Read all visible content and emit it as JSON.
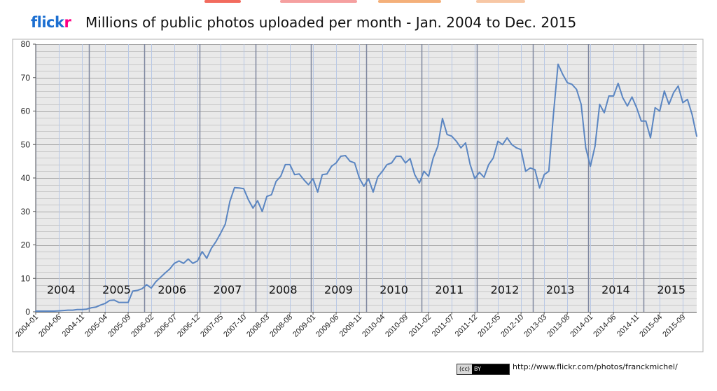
{
  "header": {
    "logo_part1": "flick",
    "logo_part2": "r",
    "title": "Millions of public photos uploaded per month - Jan. 2004 to Dec. 2015"
  },
  "footer": {
    "license_cc": "(cc)",
    "license_by": "BY",
    "url": "http://www.flickr.com/photos/franckmichel/"
  },
  "colors": {
    "line": "#5b86c2",
    "year_divider": "#7f88a0",
    "month_divider": "#b8c8e6",
    "grid": "#c8c8c8",
    "plot_background": "#e9e9e9",
    "logo_blue": "#1c6fd1",
    "logo_pink": "#ff0084"
  },
  "chart_data": {
    "type": "line",
    "title": "Millions of public photos uploaded per month - Jan. 2004 to Dec. 2015",
    "ylim": [
      0,
      80
    ],
    "y_ticks": [
      "0",
      "10",
      "20",
      "30",
      "40",
      "50",
      "60",
      "70",
      "80"
    ],
    "x_tick_labels": [
      "2004-01",
      "2004-06",
      "2004-11",
      "2005-04",
      "2005-09",
      "2006-02",
      "2006-07",
      "2006-12",
      "2007-05",
      "2007-10",
      "2008-03",
      "2008-08",
      "2009-01",
      "2009-06",
      "2009-11",
      "2010-04",
      "2010-09",
      "2011-02",
      "2011-07",
      "2011-12",
      "2012-05",
      "2012-10",
      "2013-03",
      "2013-08",
      "2014-01",
      "2014-06",
      "2014-11",
      "2015-04",
      "2015-09"
    ],
    "year_labels": [
      "2004",
      "2005",
      "2006",
      "2007",
      "2008",
      "2009",
      "2010",
      "2011",
      "2012",
      "2013",
      "2014",
      "2015"
    ],
    "grid": true,
    "legend": "none",
    "series": [
      {
        "values": [
          0.2,
          0.2,
          0.2,
          0.2,
          0.2,
          0.3,
          0.4,
          0.5,
          0.5,
          0.7,
          0.7,
          0.8,
          1.2,
          1.4,
          2.0,
          2.5,
          3.4,
          3.5,
          2.8,
          2.8,
          2.8,
          6.2,
          6.4,
          6.9,
          8.1,
          7.1,
          9.0,
          10.3,
          11.6,
          12.8,
          14.5,
          15.2,
          14.5,
          15.8,
          14.5,
          15.2,
          18.0,
          16.0,
          19.0,
          21.0,
          23.5,
          26.2,
          33.0,
          37.1,
          37.0,
          36.8,
          33.5,
          31.0,
          33.2,
          30.0,
          34.5,
          35.0,
          39.0,
          40.5,
          44.0,
          44.0,
          41.0,
          41.2,
          39.5,
          38.0,
          39.8,
          35.8,
          41.0,
          41.2,
          43.5,
          44.5,
          46.5,
          46.7,
          45.0,
          44.5,
          40.0,
          37.5,
          39.8,
          35.8,
          40.3,
          42.0,
          44.0,
          44.5,
          46.5,
          46.5,
          44.5,
          45.8,
          41.0,
          38.5,
          42.0,
          40.5,
          46.0,
          49.5,
          57.8,
          53.0,
          52.5,
          51.0,
          49.0,
          50.5,
          44.0,
          39.8,
          41.7,
          40.2,
          44.0,
          46.0,
          51.0,
          50.0,
          52.0,
          50.0,
          49.0,
          48.5,
          42.0,
          43.0,
          42.5,
          37.0,
          41.0,
          42.0,
          59.0,
          74.0,
          71.0,
          68.5,
          68.0,
          66.5,
          62.0,
          49.0,
          43.5,
          49.5,
          62.0,
          59.5,
          64.5,
          64.5,
          68.3,
          64.0,
          61.5,
          64.2,
          61.0,
          57.0,
          57.0,
          52.0,
          61.0,
          60.0,
          66.0,
          62.0,
          65.5,
          67.5,
          62.5,
          63.5,
          59.0,
          52.5
        ]
      }
    ]
  }
}
